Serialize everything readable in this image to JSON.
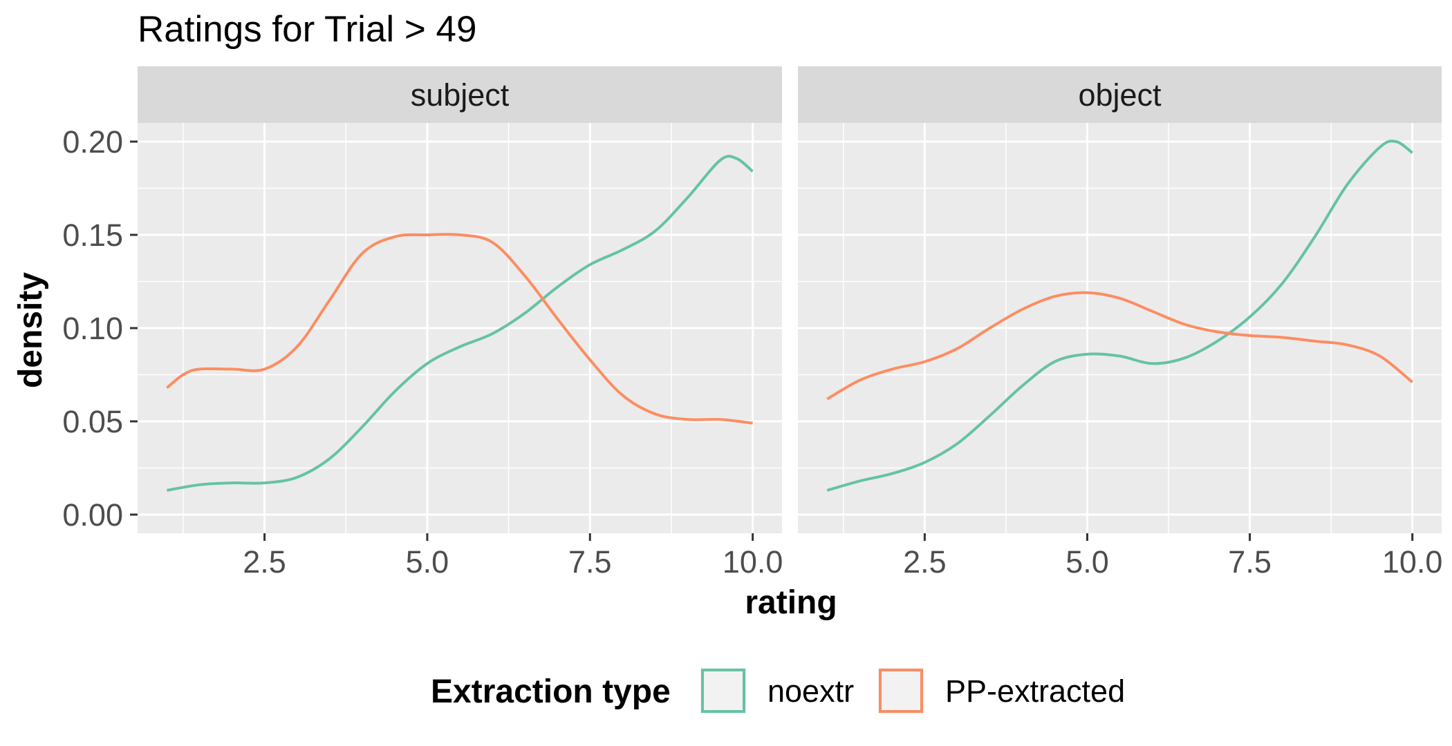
{
  "chart_data": {
    "type": "line",
    "title": "Ratings for Trial > 49",
    "xlabel": "rating",
    "ylabel": "density",
    "xlim": [
      0.55,
      10.45
    ],
    "ylim": [
      -0.01,
      0.21
    ],
    "x_ticks": [
      2.5,
      5.0,
      7.5,
      10.0
    ],
    "x_tick_labels": [
      "2.5",
      "5.0",
      "7.5",
      "10.0"
    ],
    "y_ticks": [
      0.0,
      0.05,
      0.1,
      0.15,
      0.2
    ],
    "y_tick_labels": [
      "0.00",
      "0.05",
      "0.10",
      "0.15",
      "0.20"
    ],
    "grid": true,
    "legend": {
      "title": "Extraction type",
      "position": "bottom",
      "entries": [
        {
          "label": "noextr",
          "color": "#66c2a5"
        },
        {
          "label": "PP-extracted",
          "color": "#fc8d62"
        }
      ]
    },
    "panels": [
      {
        "facet": "subject",
        "series": [
          {
            "name": "noextr",
            "color": "#66c2a5",
            "x": [
              1.0,
              1.5,
              2.0,
              2.5,
              3.0,
              3.5,
              4.0,
              4.5,
              5.0,
              5.5,
              6.0,
              6.5,
              7.0,
              7.5,
              8.0,
              8.5,
              9.0,
              9.5,
              9.75,
              10.0
            ],
            "y": [
              0.013,
              0.016,
              0.017,
              0.017,
              0.02,
              0.03,
              0.047,
              0.066,
              0.081,
              0.09,
              0.097,
              0.108,
              0.122,
              0.134,
              0.142,
              0.152,
              0.17,
              0.19,
              0.191,
              0.184
            ]
          },
          {
            "name": "PP-extracted",
            "color": "#fc8d62",
            "x": [
              1.0,
              1.25,
              1.5,
              2.0,
              2.5,
              3.0,
              3.5,
              4.0,
              4.5,
              5.0,
              5.5,
              6.0,
              6.5,
              7.0,
              7.5,
              8.0,
              8.5,
              9.0,
              9.5,
              10.0
            ],
            "y": [
              0.068,
              0.075,
              0.078,
              0.078,
              0.078,
              0.09,
              0.115,
              0.14,
              0.149,
              0.15,
              0.15,
              0.146,
              0.128,
              0.105,
              0.083,
              0.064,
              0.054,
              0.051,
              0.051,
              0.049
            ]
          }
        ]
      },
      {
        "facet": "object",
        "series": [
          {
            "name": "noextr",
            "color": "#66c2a5",
            "x": [
              1.0,
              1.5,
              2.0,
              2.5,
              3.0,
              3.5,
              4.0,
              4.5,
              5.0,
              5.5,
              6.0,
              6.5,
              7.0,
              7.5,
              8.0,
              8.5,
              9.0,
              9.5,
              9.75,
              10.0
            ],
            "y": [
              0.013,
              0.018,
              0.022,
              0.028,
              0.038,
              0.053,
              0.069,
              0.082,
              0.086,
              0.085,
              0.081,
              0.084,
              0.093,
              0.106,
              0.124,
              0.149,
              0.177,
              0.197,
              0.2,
              0.194
            ]
          },
          {
            "name": "PP-extracted",
            "color": "#fc8d62",
            "x": [
              1.0,
              1.5,
              2.0,
              2.5,
              3.0,
              3.5,
              4.0,
              4.5,
              5.0,
              5.5,
              6.0,
              6.5,
              7.0,
              7.5,
              8.0,
              8.5,
              9.0,
              9.5,
              10.0
            ],
            "y": [
              0.062,
              0.072,
              0.078,
              0.082,
              0.089,
              0.1,
              0.11,
              0.117,
              0.119,
              0.116,
              0.109,
              0.102,
              0.098,
              0.096,
              0.095,
              0.093,
              0.091,
              0.085,
              0.071
            ]
          }
        ]
      }
    ]
  }
}
